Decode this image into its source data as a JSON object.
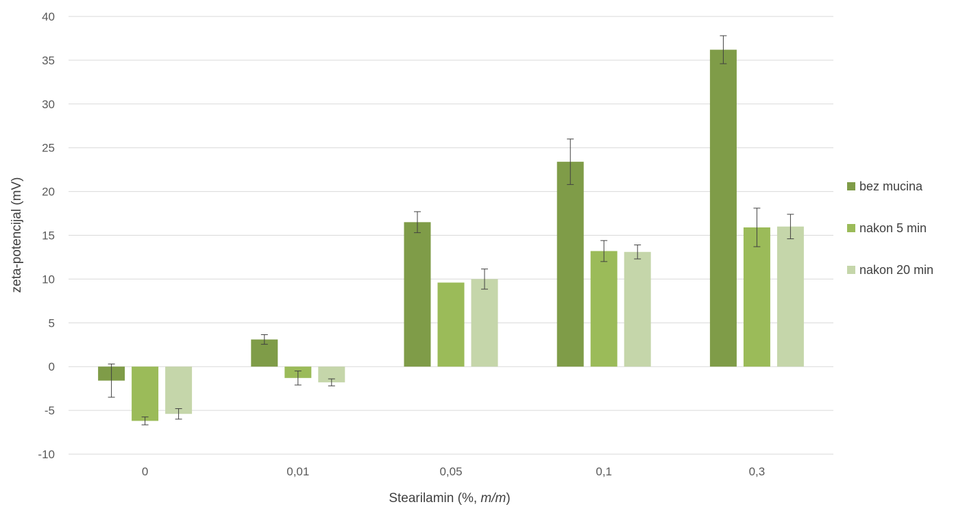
{
  "chart_data": {
    "type": "bar",
    "categories": [
      "0",
      "0,01",
      "0,05",
      "0,1",
      "0,3"
    ],
    "series": [
      {
        "name": "bez mucina",
        "color": "#7f9c48",
        "values": [
          -1.6,
          3.1,
          16.5,
          23.4,
          36.2
        ],
        "errors": [
          1.9,
          0.55,
          1.2,
          2.6,
          1.6
        ]
      },
      {
        "name": "nakon 5 min",
        "color": "#9bbb59",
        "values": [
          -6.2,
          -1.3,
          9.6,
          13.2,
          15.9
        ],
        "errors": [
          0.45,
          0.8,
          0.0,
          1.2,
          2.2
        ]
      },
      {
        "name": "nakon 20 min",
        "color": "#c5d6aa",
        "values": [
          -5.4,
          -1.8,
          10.0,
          13.1,
          16.0
        ],
        "errors": [
          0.6,
          0.4,
          1.15,
          0.8,
          1.4
        ]
      }
    ],
    "xlabel": {
      "prefix": "Stearilamin (%, ",
      "italic": "m/m",
      "suffix": ")"
    },
    "ylabel": "zeta-potencijal (mV)",
    "ylim": [
      -10,
      40
    ],
    "yticks": [
      -10,
      -5,
      0,
      5,
      10,
      15,
      20,
      25,
      30,
      35,
      40
    ],
    "grid": true,
    "legend_position": "right"
  }
}
